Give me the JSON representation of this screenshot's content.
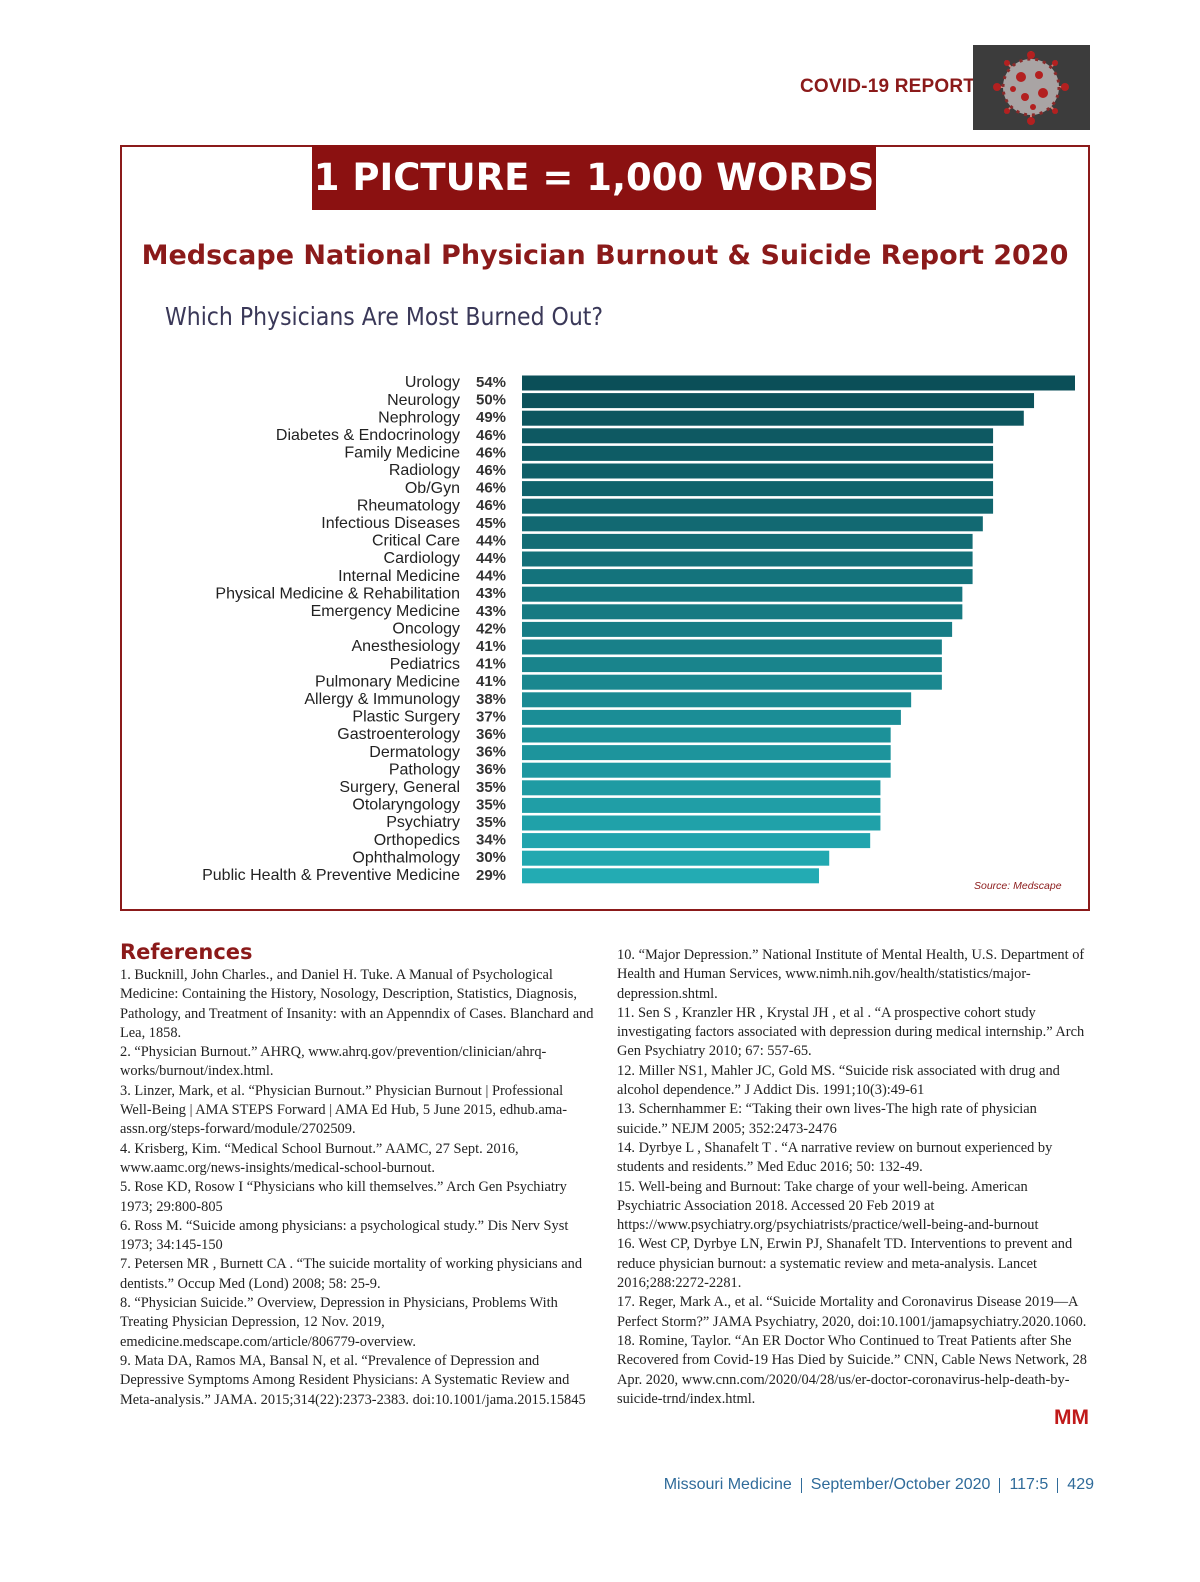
{
  "header": {
    "section": "COVID-19 REPORT"
  },
  "banner": "1 PICTURE = 1,000 WORDS",
  "chart_data": {
    "type": "hbar",
    "title": "Medscape National Physician Burnout & Suicide Report 2020",
    "subtitle": "Which Physicians Are Most Burned Out?",
    "categories": [
      "Urology",
      "Neurology",
      "Nephrology",
      "Diabetes & Endocrinology",
      "Family Medicine",
      "Radiology",
      "Ob/Gyn",
      "Rheumatology",
      "Infectious Diseases",
      "Critical Care",
      "Cardiology",
      "Internal Medicine",
      "Physical Medicine & Rehabilitation",
      "Emergency Medicine",
      "Oncology",
      "Anesthesiology",
      "Pediatrics",
      "Pulmonary Medicine",
      "Allergy & Immunology",
      "Plastic Surgery",
      "Gastroenterology",
      "Dermatology",
      "Pathology",
      "Surgery, General",
      "Otolaryngology",
      "Psychiatry",
      "Orthopedics",
      "Ophthalmology",
      "Public Health & Preventive Medicine"
    ],
    "values": [
      54,
      50,
      49,
      46,
      46,
      46,
      46,
      46,
      45,
      44,
      44,
      44,
      43,
      43,
      42,
      41,
      41,
      41,
      38,
      37,
      36,
      36,
      36,
      35,
      35,
      35,
      34,
      30,
      29
    ],
    "value_labels": [
      "54%",
      "50%",
      "49%",
      "46%",
      "46%",
      "46%",
      "46%",
      "46%",
      "45%",
      "44%",
      "44%",
      "44%",
      "43%",
      "43%",
      "42%",
      "41%",
      "41%",
      "41%",
      "38%",
      "37%",
      "36%",
      "36%",
      "36%",
      "35%",
      "35%",
      "35%",
      "34%",
      "30%",
      "29%"
    ],
    "colors": [
      "#0b4f58",
      "#23abb3"
    ],
    "source": "Source: Medscape"
  },
  "references": {
    "title": "References",
    "column_1": [
      "1. Bucknill, John Charles., and Daniel H. Tuke. A Manual of Psychological Medicine: Containing the History, Nosology, Description, Statistics, Diagnosis, Pathology, and Treatment of Insanity: with an Appenndix of Cases. Blanchard and Lea, 1858.",
      "2. “Physician Burnout.” AHRQ, www.ahrq.gov/prevention/clinician/ahrq-works/burnout/index.html.",
      "3. Linzer, Mark, et al. “Physician Burnout.” Physician Burnout | Professional Well-Being | AMA STEPS Forward | AMA Ed Hub, 5 June 2015, edhub.ama-assn.org/steps-forward/module/2702509.",
      "4. Krisberg, Kim. “Medical School Burnout.” AAMC, 27 Sept. 2016, www.aamc.org/news-insights/medical-school-burnout.",
      "5. Rose KD, Rosow I “Physicians who kill themselves.” Arch Gen Psychiatry 1973; 29:800-805",
      "6. Ross M. “Suicide among physicians: a psychological study.” Dis Nerv Syst 1973; 34:145-150",
      "7. Petersen MR , Burnett CA . “The suicide mortality of working physicians and dentists.” Occup Med (Lond) 2008; 58: 25-9.",
      "8. “Physician Suicide.” Overview, Depression in Physicians, Problems With Treating Physician Depression, 12 Nov. 2019, emedicine.medscape.com/article/806779-overview.",
      "9. Mata DA, Ramos MA, Bansal N, et al. “Prevalence of Depression and Depressive Symptoms Among Resident Physicians: A Systematic Review and Meta-analysis.” JAMA. 2015;314(22):2373-2383. doi:10.1001/jama.2015.15845"
    ],
    "column_2": [
      "10. “Major Depression.” National Institute of Mental Health, U.S. Department of Health and Human Services, www.nimh.nih.gov/health/statistics/major-depression.shtml.",
      "11. Sen S , Kranzler HR , Krystal JH , et al . “A prospective cohort study investigating factors associated with depression during medical internship.” Arch Gen Psychiatry 2010; 67: 557-65.",
      "12. Miller NS1, Mahler JC, Gold MS. “Suicide risk associated with drug and alcohol dependence.” J Addict Dis. 1991;10(3):49-61",
      "13. Schernhammer E: “Taking their own lives-The high rate of physician suicide.” NEJM 2005; 352:2473-2476",
      "14. Dyrbye L , Shanafelt T . “A narrative review on burnout experienced by students and residents.” Med Educ 2016; 50: 132-49.",
      "15. Well-being and Burnout: Take charge of your well-being. American Psychiatric Association 2018. Accessed 20 Feb 2019 at https://www.psychiatry.org/psychiatrists/practice/well-being-and-burnout",
      "16. West CP, Dyrbye LN, Erwin PJ, Shanafelt TD. Interventions to prevent and reduce physician burnout: a systematic review and meta-analysis. Lancet 2016;288:2272-2281.",
      "17. Reger, Mark A., et al. “Suicide Mortality and Coronavirus Disease 2019—A Perfect Storm?” JAMA Psychiatry, 2020, doi:10.1001/jamapsychiatry.2020.1060.",
      "18. Romine, Taylor. “An ER Doctor Who Continued to Treat Patients after She Recovered from Covid-19 Has Died by Suicide.” CNN, Cable News Network, 28 Apr. 2020, www.cnn.com/2020/04/28/us/er-doctor-coronavirus-help-death-by-suicide-trnd/index.html."
    ]
  },
  "end_mark": "MM",
  "footer": {
    "journal": "Missouri Medicine",
    "issue": "September/October 2020",
    "volume": "117:5",
    "page": "429"
  }
}
